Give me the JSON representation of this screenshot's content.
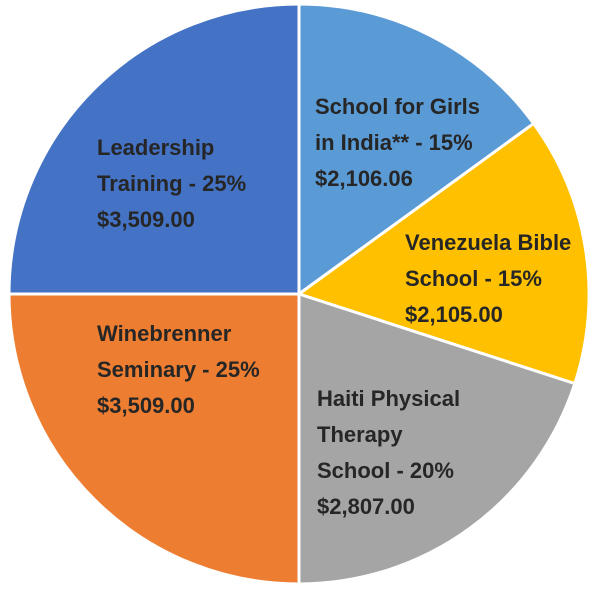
{
  "chart_data": {
    "type": "pie",
    "title": "",
    "slices": [
      {
        "label": "School for Girls in India** - 15%",
        "lines": [
          "School for Girls",
          "in India** - 15%",
          "$2,106.06"
        ],
        "percent": 15,
        "amount": 2106.06,
        "amount_label": "$2,106.06",
        "color": "#5B9BD5"
      },
      {
        "label": "Venezuela Bible School - 15%",
        "lines": [
          "Venezuela Bible",
          "School - 15%",
          "$2,105.00"
        ],
        "percent": 15,
        "amount": 2105.0,
        "amount_label": "$2,105.00",
        "color": "#FFC000"
      },
      {
        "label": "Haiti Physical Therapy School - 20%",
        "lines": [
          "Haiti Physical",
          "Therapy",
          "School - 20%",
          "$2,807.00"
        ],
        "percent": 20,
        "amount": 2807.0,
        "amount_label": "$2,807.00",
        "color": "#A5A5A5"
      },
      {
        "label": "Winebrenner Seminary - 25%",
        "lines": [
          "Winebrenner",
          "Seminary - 25%",
          "$3,509.00"
        ],
        "percent": 25,
        "amount": 3509.0,
        "amount_label": "$3,509.00",
        "color": "#ED7D31"
      },
      {
        "label": "Leadership Training - 25%",
        "lines": [
          "Leadership",
          "Training - 25%",
          "$3,509.00"
        ],
        "percent": 25,
        "amount": 3509.0,
        "amount_label": "$3,509.00",
        "color": "#4472C4"
      }
    ]
  }
}
